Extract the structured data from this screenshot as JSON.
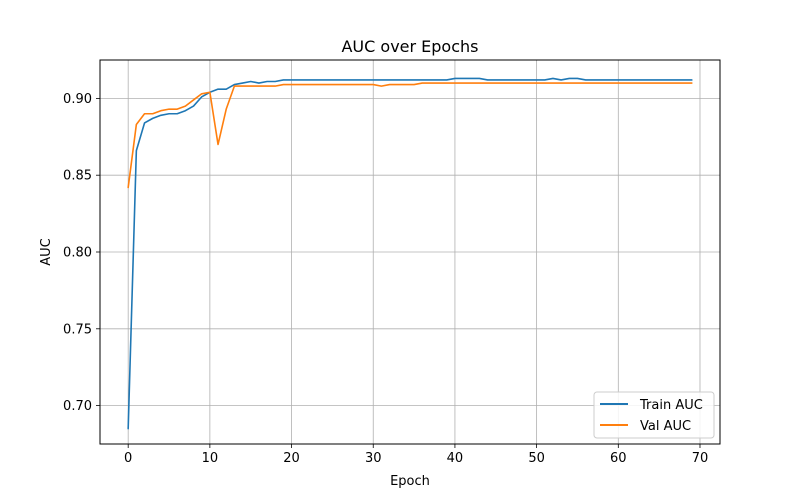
{
  "chart_data": {
    "type": "line",
    "title": "AUC over Epochs",
    "xlabel": "Epoch",
    "ylabel": "AUC",
    "xlim": [
      -3.45,
      72.45
    ],
    "ylim": [
      0.675,
      0.925
    ],
    "xticks": [
      0,
      10,
      20,
      30,
      40,
      50,
      60,
      70
    ],
    "yticks": [
      0.7,
      0.75,
      0.8,
      0.85,
      0.9
    ],
    "grid": true,
    "legend_position": "lower-right",
    "x": [
      0,
      1,
      2,
      3,
      4,
      5,
      6,
      7,
      8,
      9,
      10,
      11,
      12,
      13,
      14,
      15,
      16,
      17,
      18,
      19,
      20,
      21,
      22,
      23,
      24,
      25,
      26,
      27,
      28,
      29,
      30,
      31,
      32,
      33,
      34,
      35,
      36,
      37,
      38,
      39,
      40,
      41,
      42,
      43,
      44,
      45,
      46,
      47,
      48,
      49,
      50,
      51,
      52,
      53,
      54,
      55,
      56,
      57,
      58,
      59,
      60,
      61,
      62,
      63,
      64,
      65,
      66,
      67,
      68,
      69
    ],
    "series": [
      {
        "name": "Train AUC",
        "color": "#1f77b4",
        "values": [
          0.685,
          0.866,
          0.884,
          0.887,
          0.889,
          0.89,
          0.89,
          0.892,
          0.895,
          0.901,
          0.904,
          0.906,
          0.906,
          0.909,
          0.91,
          0.911,
          0.91,
          0.911,
          0.911,
          0.912,
          0.912,
          0.912,
          0.912,
          0.912,
          0.912,
          0.912,
          0.912,
          0.912,
          0.912,
          0.912,
          0.912,
          0.912,
          0.912,
          0.912,
          0.912,
          0.912,
          0.912,
          0.912,
          0.912,
          0.912,
          0.913,
          0.913,
          0.913,
          0.913,
          0.912,
          0.912,
          0.912,
          0.912,
          0.912,
          0.912,
          0.912,
          0.912,
          0.913,
          0.912,
          0.913,
          0.913,
          0.912,
          0.912,
          0.912,
          0.912,
          0.912,
          0.912,
          0.912,
          0.912,
          0.912,
          0.912,
          0.912,
          0.912,
          0.912,
          0.912
        ]
      },
      {
        "name": "Val AUC",
        "color": "#ff7f0e",
        "values": [
          0.842,
          0.883,
          0.89,
          0.89,
          0.892,
          0.893,
          0.893,
          0.895,
          0.899,
          0.903,
          0.904,
          0.87,
          0.893,
          0.908,
          0.908,
          0.908,
          0.908,
          0.908,
          0.908,
          0.909,
          0.909,
          0.909,
          0.909,
          0.909,
          0.909,
          0.909,
          0.909,
          0.909,
          0.909,
          0.909,
          0.909,
          0.908,
          0.909,
          0.909,
          0.909,
          0.909,
          0.91,
          0.91,
          0.91,
          0.91,
          0.91,
          0.91,
          0.91,
          0.91,
          0.91,
          0.91,
          0.91,
          0.91,
          0.91,
          0.91,
          0.91,
          0.91,
          0.91,
          0.91,
          0.91,
          0.91,
          0.91,
          0.91,
          0.91,
          0.91,
          0.91,
          0.91,
          0.91,
          0.91,
          0.91,
          0.91,
          0.91,
          0.91,
          0.91,
          0.91
        ]
      }
    ]
  }
}
